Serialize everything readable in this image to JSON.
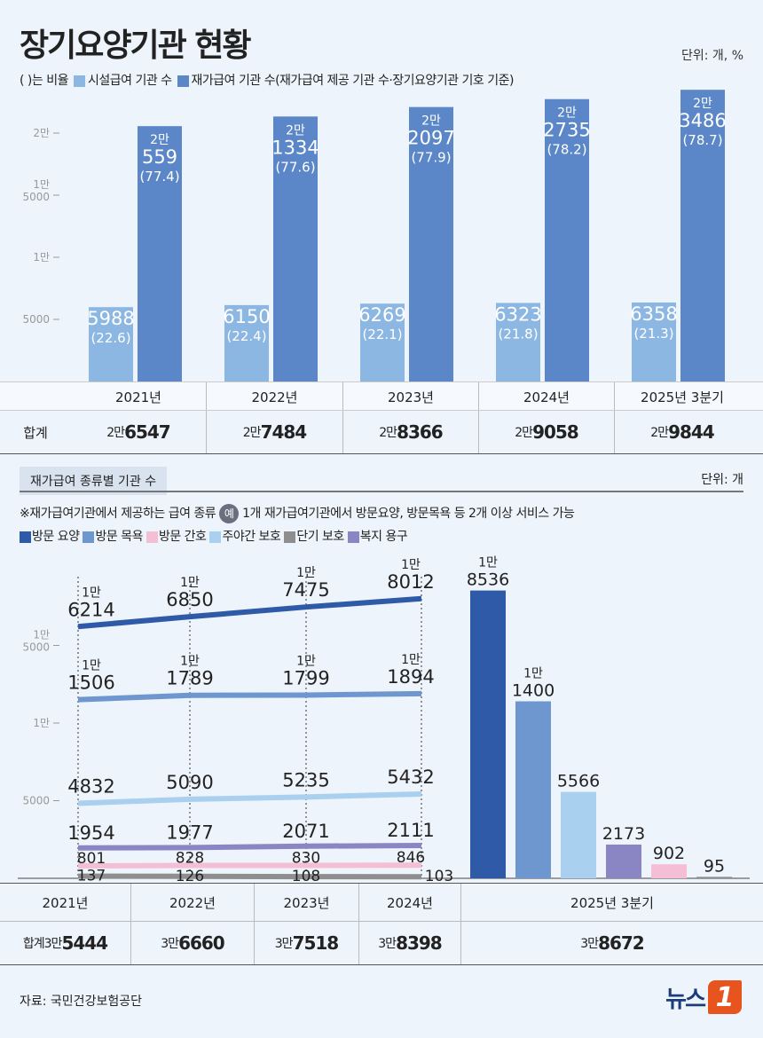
{
  "title": "장기요양기관 현황",
  "unit_top": "단위: 개, %",
  "legend_top": {
    "note": "( )는 비율",
    "facility": "시설급여 기관 수",
    "home": "재가급여 기관 수(재가급여 제공 기관 수·장기요양기관 기호 기준)"
  },
  "section2": {
    "title": "재가급여 종류별 기관 수",
    "unit": "단위: 개",
    "note_before": "※재가급여기관에서 제공하는 급여 종류",
    "note_ex": "예",
    "note_after": "1개 재가급여기관에서 방문요양, 방문목욕 등 2개 이상 서비스 가능"
  },
  "total_label": "합계",
  "source": "자료: 국민건강보험공단",
  "logo": {
    "text": "뉴스",
    "mark": "1"
  },
  "chart_data": [
    {
      "type": "bar",
      "categories": [
        "2021년",
        "2022년",
        "2023년",
        "2024년",
        "2025년 3분기"
      ],
      "yticks": [
        "5000",
        "1만",
        "1만 5000",
        "2만"
      ],
      "ylim": [
        0,
        24000
      ],
      "series": [
        {
          "name": "시설급여 기관 수",
          "color": "#8db7e3",
          "values": [
            5988,
            6150,
            6269,
            6323,
            6358
          ],
          "ratios": [
            "(22.6)",
            "(22.4)",
            "(22.1)",
            "(21.8)",
            "(21.3)"
          ]
        },
        {
          "name": "재가급여 기관 수",
          "color": "#5b87c9",
          "values": [
            20559,
            21334,
            22097,
            22735,
            23486
          ],
          "ratios": [
            "(77.4)",
            "(77.6)",
            "(77.9)",
            "(78.2)",
            "(78.7)"
          ]
        }
      ],
      "totals": [
        [
          "2만",
          "6547"
        ],
        [
          "2만",
          "7484"
        ],
        [
          "2만",
          "8366"
        ],
        [
          "2만",
          "9058"
        ],
        [
          "2만",
          "9844"
        ]
      ]
    },
    {
      "type": "line",
      "categories": [
        "2021년",
        "2022년",
        "2023년",
        "2024년",
        "2025년 3분기"
      ],
      "yticks": [
        "5000",
        "1만",
        "1만 5000"
      ],
      "ylim": [
        0,
        19000
      ],
      "series": [
        {
          "name": "방문 요양",
          "color": "#2e5aa8",
          "values": [
            16214,
            16850,
            17475,
            18012,
            18536
          ]
        },
        {
          "name": "방문 목욕",
          "color": "#6e97cf",
          "values": [
            11506,
            11789,
            11799,
            11894,
            11400
          ]
        },
        {
          "name": "방문 간호",
          "color": "#f4bfd4",
          "values": [
            801,
            828,
            830,
            846,
            902
          ]
        },
        {
          "name": "주야간 보호",
          "color": "#a9d0ee",
          "values": [
            4832,
            5090,
            5235,
            5432,
            5566
          ]
        },
        {
          "name": "단기 보호",
          "color": "#8e8e8e",
          "values": [
            137,
            126,
            108,
            103,
            95
          ]
        },
        {
          "name": "복지 용구",
          "color": "#8a86c3",
          "values": [
            1954,
            1977,
            2071,
            2111,
            2173
          ]
        }
      ],
      "totals": [
        [
          "3만",
          "5444"
        ],
        [
          "3만",
          "6660"
        ],
        [
          "3만",
          "7518"
        ],
        [
          "3만",
          "8398"
        ],
        [
          "3만",
          "8672"
        ]
      ]
    }
  ]
}
